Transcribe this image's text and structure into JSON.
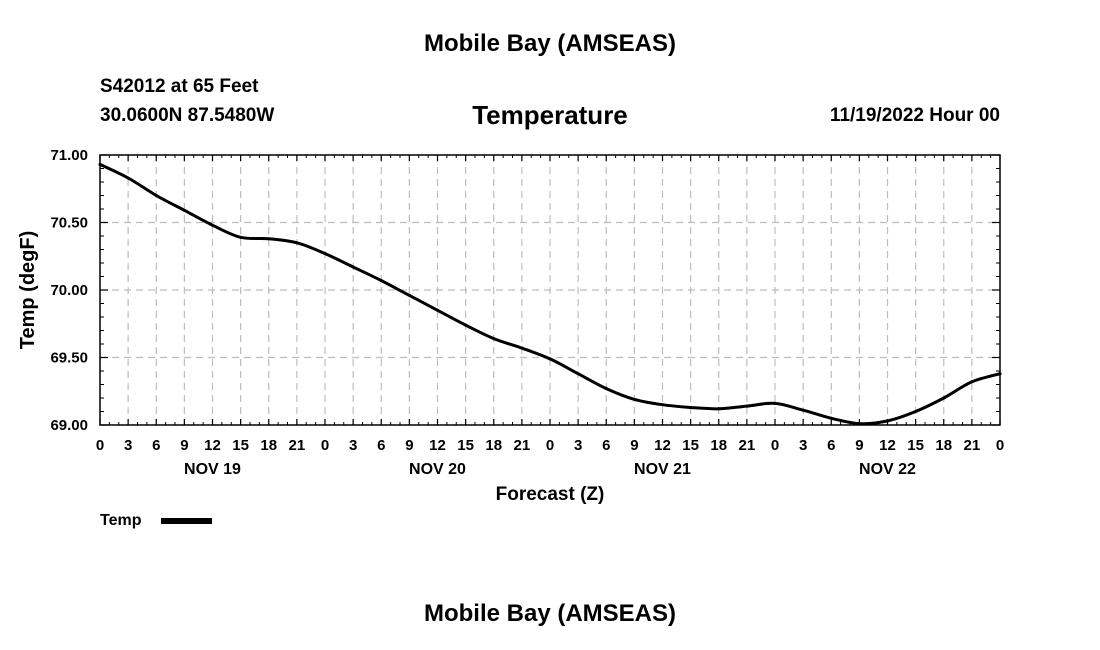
{
  "header": {
    "title": "Mobile Bay (AMSEAS)",
    "station": "S42012 at 65 Feet",
    "coordinates": "30.0600N  87.5480W",
    "datetime": "11/19/2022 Hour 00"
  },
  "footer": {
    "title": "Mobile Bay (AMSEAS)"
  },
  "chart_data": {
    "type": "line",
    "title": "Temperature",
    "xlabel": "Forecast (Z)",
    "ylabel": "Temp (degF)",
    "xlim": [
      0,
      96
    ],
    "ylim": [
      69.0,
      71.0
    ],
    "grid": true,
    "legend": {
      "position": "bottom-left",
      "entries": [
        "Temp"
      ]
    },
    "x_ticks": [
      0,
      3,
      6,
      9,
      12,
      15,
      18,
      21,
      24,
      27,
      30,
      33,
      36,
      39,
      42,
      45,
      48,
      51,
      54,
      57,
      60,
      63,
      66,
      69,
      72,
      75,
      78,
      81,
      84,
      87,
      90,
      93,
      96
    ],
    "x_tick_labels": [
      "0",
      "3",
      "6",
      "9",
      "12",
      "15",
      "18",
      "21",
      "0",
      "3",
      "6",
      "9",
      "12",
      "15",
      "18",
      "21",
      "0",
      "3",
      "6",
      "9",
      "12",
      "15",
      "18",
      "21",
      "0",
      "3",
      "6",
      "9",
      "12",
      "15",
      "18",
      "21",
      "0"
    ],
    "day_labels": [
      {
        "x": 12,
        "label": "NOV 19"
      },
      {
        "x": 36,
        "label": "NOV 20"
      },
      {
        "x": 60,
        "label": "NOV 21"
      },
      {
        "x": 84,
        "label": "NOV 22"
      }
    ],
    "y_ticks": [
      69.0,
      69.5,
      70.0,
      70.5,
      71.0
    ],
    "y_tick_labels": [
      "69.00",
      "69.50",
      "70.00",
      "70.50",
      "71.00"
    ],
    "series": [
      {
        "name": "Temp",
        "color": "#000000",
        "x": [
          0,
          3,
          6,
          9,
          12,
          15,
          18,
          21,
          24,
          27,
          30,
          33,
          36,
          39,
          42,
          45,
          48,
          51,
          54,
          57,
          60,
          63,
          66,
          69,
          72,
          75,
          78,
          81,
          84,
          87,
          90,
          93,
          96
        ],
        "values": [
          70.93,
          70.83,
          70.7,
          70.59,
          70.48,
          70.39,
          70.38,
          70.35,
          70.27,
          70.17,
          70.07,
          69.96,
          69.85,
          69.74,
          69.64,
          69.57,
          69.49,
          69.38,
          69.27,
          69.19,
          69.15,
          69.13,
          69.12,
          69.14,
          69.16,
          69.11,
          69.05,
          69.01,
          69.03,
          69.1,
          69.2,
          69.32,
          69.38
        ]
      }
    ]
  }
}
